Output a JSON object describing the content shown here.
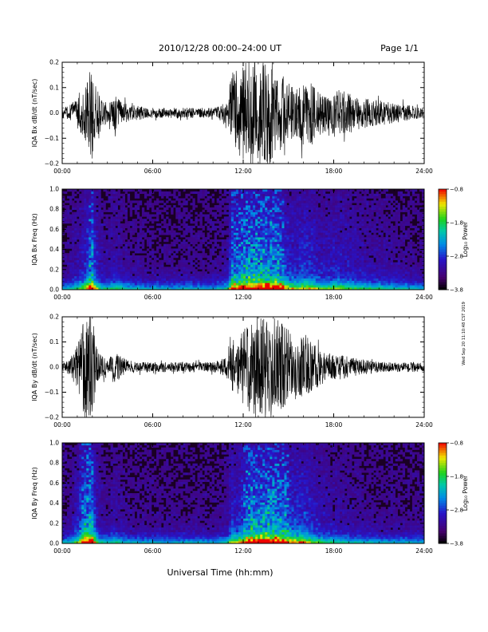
{
  "header": {
    "date_range": "2010/12/28  00:00–24:00 UT",
    "page": "Page 1/1"
  },
  "footer_xlabel": "Universal Time (hh:mm)",
  "side_stamp": "Wed Sep 20 11:10:48 CST 2019",
  "chart_data": [
    {
      "type": "line",
      "ylabel": "IQA Bx dB/dt (nT/sec)",
      "xlim": [
        0,
        24
      ],
      "ylim": [
        -0.2,
        0.2
      ],
      "xticks": [
        "00:00",
        "06:00",
        "12:00",
        "18:00",
        "24:00"
      ],
      "yticks": [
        "−0.2",
        "−0.1",
        "0.0",
        "0.1",
        "0.2"
      ],
      "series": [
        {
          "x": [
            0,
            0.5,
            1,
            1.5,
            1.75,
            2,
            2.25,
            2.5,
            3,
            3.5,
            4,
            4.5,
            5,
            5.5,
            6,
            7,
            8,
            9,
            10,
            10.5,
            11,
            11.25,
            11.5,
            12,
            12.5,
            13,
            13.5,
            14,
            14.5,
            15,
            15.5,
            16,
            16.5,
            17,
            17.5,
            18,
            18.5,
            19,
            20,
            21,
            22,
            23,
            24
          ],
          "envelope": [
            0.02,
            0.03,
            0.06,
            0.1,
            0.16,
            0.19,
            0.12,
            0.06,
            0.04,
            0.07,
            0.05,
            0.03,
            0.03,
            0.02,
            0.02,
            0.02,
            0.02,
            0.02,
            0.02,
            0.03,
            0.05,
            0.19,
            0.15,
            0.2,
            0.2,
            0.2,
            0.2,
            0.2,
            0.17,
            0.12,
            0.1,
            0.13,
            0.12,
            0.09,
            0.08,
            0.1,
            0.09,
            0.08,
            0.06,
            0.05,
            0.04,
            0.03,
            0.02
          ]
        }
      ]
    },
    {
      "type": "heatmap",
      "ylabel": "IQA Bx Freq (Hz)",
      "xlim": [
        0,
        24
      ],
      "ylim": [
        0,
        1.0
      ],
      "xticks": [
        "00:00",
        "06:00",
        "12:00",
        "18:00",
        "24:00"
      ],
      "yticks": [
        "0.0",
        "0.2",
        "0.4",
        "0.6",
        "0.8",
        "1.0"
      ],
      "colorbar": {
        "label": "Log₁₀ Power",
        "range": [
          -3.8,
          -0.8
        ],
        "ticks": [
          "−0.8",
          "−1.8",
          "−2.8",
          "−3.8"
        ]
      }
    },
    {
      "type": "line",
      "ylabel": "IQA By dB/dt (nT/sec)",
      "xlim": [
        0,
        24
      ],
      "ylim": [
        -0.2,
        0.2
      ],
      "xticks": [
        "00:00",
        "06:00",
        "12:00",
        "18:00",
        "24:00"
      ],
      "yticks": [
        "−0.2",
        "−0.1",
        "0.0",
        "0.1",
        "0.2"
      ],
      "series": [
        {
          "x": [
            0,
            0.5,
            1,
            1.5,
            1.75,
            2,
            2.25,
            2.5,
            3,
            3.5,
            4,
            4.5,
            5,
            5.5,
            6,
            7,
            8,
            9,
            10,
            10.5,
            11,
            11.25,
            11.5,
            12,
            12.5,
            13,
            13.5,
            14,
            14.5,
            15,
            15.5,
            16,
            16.5,
            17,
            17.5,
            18,
            18.5,
            19,
            20,
            21,
            22,
            23,
            24
          ],
          "envelope": [
            0.02,
            0.03,
            0.1,
            0.2,
            0.2,
            0.2,
            0.1,
            0.05,
            0.03,
            0.06,
            0.04,
            0.02,
            0.02,
            0.02,
            0.02,
            0.02,
            0.02,
            0.02,
            0.02,
            0.03,
            0.04,
            0.12,
            0.1,
            0.15,
            0.2,
            0.2,
            0.2,
            0.2,
            0.18,
            0.15,
            0.13,
            0.14,
            0.1,
            0.08,
            0.06,
            0.05,
            0.05,
            0.04,
            0.03,
            0.02,
            0.02,
            0.02,
            0.02
          ]
        }
      ]
    },
    {
      "type": "heatmap",
      "ylabel": "IQA By Freq (Hz)",
      "xlim": [
        0,
        24
      ],
      "ylim": [
        0,
        1.0
      ],
      "xticks": [
        "00:00",
        "06:00",
        "12:00",
        "18:00",
        "24:00"
      ],
      "yticks": [
        "0.0",
        "0.2",
        "0.4",
        "0.6",
        "0.8",
        "1.0"
      ],
      "colorbar": {
        "label": "Log₁₀ Power",
        "range": [
          -3.8,
          -0.8
        ],
        "ticks": [
          "−0.8",
          "−1.8",
          "−2.8",
          "−3.8"
        ]
      }
    }
  ]
}
